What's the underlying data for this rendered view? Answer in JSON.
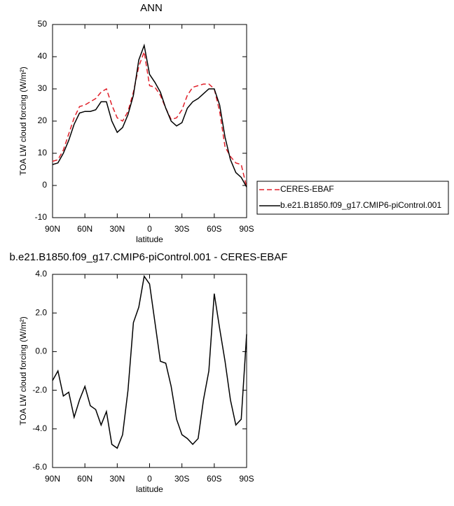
{
  "chart_data": [
    {
      "type": "line",
      "title": "ANN",
      "xlabel": "latitude",
      "ylabel": "TOA LW cloud forcing (W/m²)",
      "x": [
        90,
        85,
        80,
        75,
        70,
        65,
        60,
        55,
        50,
        45,
        40,
        35,
        30,
        25,
        20,
        15,
        10,
        5,
        0,
        -5,
        -10,
        -15,
        -20,
        -25,
        -30,
        -35,
        -40,
        -45,
        -50,
        -55,
        -60,
        -65,
        -70,
        -75,
        -80,
        -85,
        -90
      ],
      "xlim": [
        90,
        -90
      ],
      "xticks": [
        {
          "value": 90,
          "label": "90N"
        },
        {
          "value": 60,
          "label": "60N"
        },
        {
          "value": 30,
          "label": "30N"
        },
        0,
        {
          "value": -30,
          "label": "30S"
        },
        {
          "value": -60,
          "label": "60S"
        },
        {
          "value": -90,
          "label": "90S"
        }
      ],
      "ylim": [
        -10,
        50
      ],
      "yticks": [
        -10,
        0,
        10,
        20,
        30,
        40,
        50
      ],
      "legend": "right",
      "series": [
        {
          "name": "CERES-EBAF",
          "color": "#e0202a",
          "line_style": "dashed",
          "values": [
            7.5,
            8,
            11,
            16,
            21,
            24.5,
            25,
            26,
            27,
            29,
            30,
            25,
            21,
            20,
            23,
            29,
            37,
            41.5,
            31,
            30.5,
            28,
            24,
            20.5,
            21,
            23.5,
            28,
            30.5,
            31,
            31.5,
            31.5,
            30,
            23,
            12,
            9,
            7,
            6.5,
            -0.5
          ]
        },
        {
          "name": "b.e21.B1850.f09_g17.CMIP6-piControl.001",
          "color": "#000000",
          "line_style": "solid",
          "values": [
            6.5,
            7,
            10,
            14,
            19,
            22.5,
            23,
            23,
            23.5,
            26,
            26,
            20,
            16.5,
            18,
            22,
            28,
            39,
            43.5,
            34.5,
            32,
            29,
            24,
            20,
            18.5,
            19.5,
            24,
            26,
            27,
            28.5,
            30,
            30,
            25,
            15,
            8,
            4,
            2.5,
            -0.5
          ]
        }
      ]
    },
    {
      "type": "line",
      "title": "b.e21.B1850.f09_g17.CMIP6-piControl.001 - CERES-EBAF",
      "xlabel": "latitude",
      "ylabel": "TOA LW cloud forcing (W/m²)",
      "x": [
        90,
        85,
        80,
        75,
        70,
        65,
        60,
        55,
        50,
        45,
        40,
        35,
        30,
        25,
        20,
        15,
        10,
        5,
        0,
        -5,
        -10,
        -15,
        -20,
        -25,
        -30,
        -35,
        -40,
        -45,
        -50,
        -55,
        -60,
        -65,
        -70,
        -75,
        -80,
        -85,
        -90
      ],
      "xlim": [
        90,
        -90
      ],
      "xticks": [
        {
          "value": 90,
          "label": "90N"
        },
        {
          "value": 60,
          "label": "60N"
        },
        {
          "value": 30,
          "label": "30N"
        },
        0,
        {
          "value": -30,
          "label": "30S"
        },
        {
          "value": -60,
          "label": "60S"
        },
        {
          "value": -90,
          "label": "90S"
        }
      ],
      "ylim": [
        -6,
        4
      ],
      "yticks": [
        {
          "value": -6,
          "label": "-6.0"
        },
        {
          "value": -4,
          "label": "-4.0"
        },
        {
          "value": -2,
          "label": "-2.0"
        },
        {
          "value": 0,
          "label": "0.0"
        },
        {
          "value": 2,
          "label": "2.0"
        },
        {
          "value": 4,
          "label": "4.0"
        }
      ],
      "series": [
        {
          "color": "#000000",
          "line_style": "solid",
          "values": [
            -1.5,
            -1.0,
            -2.3,
            -2.1,
            -3.4,
            -2.5,
            -1.8,
            -2.8,
            -3.0,
            -3.8,
            -3.1,
            -4.8,
            -5.0,
            -4.3,
            -2.0,
            1.5,
            2.3,
            3.9,
            3.5,
            1.5,
            -0.5,
            -0.6,
            -1.8,
            -3.5,
            -4.3,
            -4.5,
            -4.8,
            -4.5,
            -2.5,
            -1.0,
            3.0,
            1.2,
            -0.5,
            -2.5,
            -3.8,
            -3.5,
            0.9
          ]
        }
      ]
    }
  ]
}
